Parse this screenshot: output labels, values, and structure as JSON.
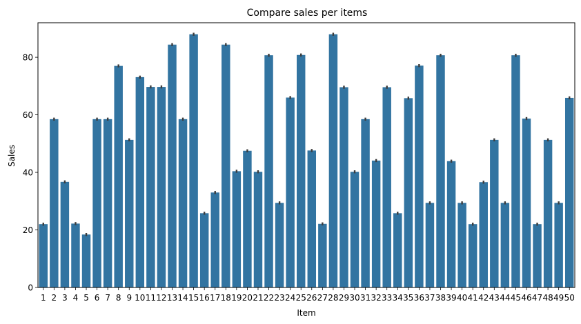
{
  "chart_data": {
    "type": "bar",
    "title": "Compare sales per items",
    "xlabel": "Item",
    "ylabel": "Sales",
    "ylim": [
      0,
      92
    ],
    "yticks": [
      0,
      20,
      40,
      60,
      80
    ],
    "grid": false,
    "error_bars": true,
    "bar_color": "#3274a1",
    "error_color": "#3d3d3d",
    "categories": [
      "1",
      "2",
      "3",
      "4",
      "5",
      "6",
      "7",
      "8",
      "9",
      "10",
      "11",
      "12",
      "13",
      "14",
      "15",
      "16",
      "17",
      "18",
      "19",
      "20",
      "21",
      "22",
      "23",
      "24",
      "25",
      "26",
      "27",
      "28",
      "29",
      "30",
      "31",
      "32",
      "33",
      "34",
      "35",
      "36",
      "37",
      "38",
      "39",
      "40",
      "41",
      "42",
      "43",
      "44",
      "45",
      "46",
      "47",
      "48",
      "49",
      "50"
    ],
    "values": [
      22.0,
      58.5,
      36.7,
      22.2,
      18.4,
      58.5,
      58.5,
      77.0,
      51.3,
      73.1,
      69.7,
      69.7,
      84.4,
      58.5,
      88.0,
      25.8,
      33.0,
      84.4,
      40.4,
      47.5,
      40.2,
      80.7,
      29.4,
      66.0,
      80.8,
      47.6,
      22.1,
      88.0,
      69.6,
      40.2,
      58.5,
      44.1,
      69.6,
      25.8,
      65.8,
      77.1,
      29.4,
      80.7,
      43.9,
      29.4,
      22.0,
      36.6,
      51.3,
      29.4,
      80.7,
      58.7,
      22.0,
      51.3,
      29.4,
      65.9
    ]
  }
}
